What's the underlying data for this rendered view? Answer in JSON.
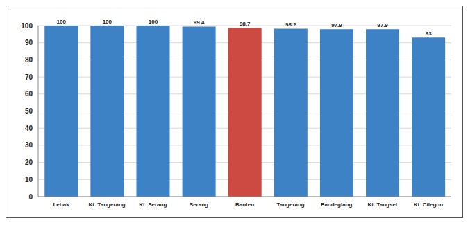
{
  "chart_data": {
    "type": "bar",
    "categories": [
      "Lebak",
      "Kt. Tangerang",
      "Kt. Serang",
      "Serang",
      "Banten",
      "Tangerang",
      "Pandeglang",
      "Kt. Tangsel",
      "Kt. Cilegon"
    ],
    "values": [
      100,
      100,
      100,
      99.4,
      98.7,
      98.2,
      97.9,
      97.9,
      93
    ],
    "colors": [
      "#3d82c4",
      "#3d82c4",
      "#3d82c4",
      "#3d82c4",
      "#cc4a41",
      "#3d82c4",
      "#3d82c4",
      "#3d82c4",
      "#3d82c4"
    ],
    "ylim": [
      0,
      100
    ],
    "yticks": [
      0,
      10,
      20,
      30,
      40,
      50,
      60,
      70,
      80,
      90,
      100
    ],
    "grid": true,
    "data_labels": true
  }
}
